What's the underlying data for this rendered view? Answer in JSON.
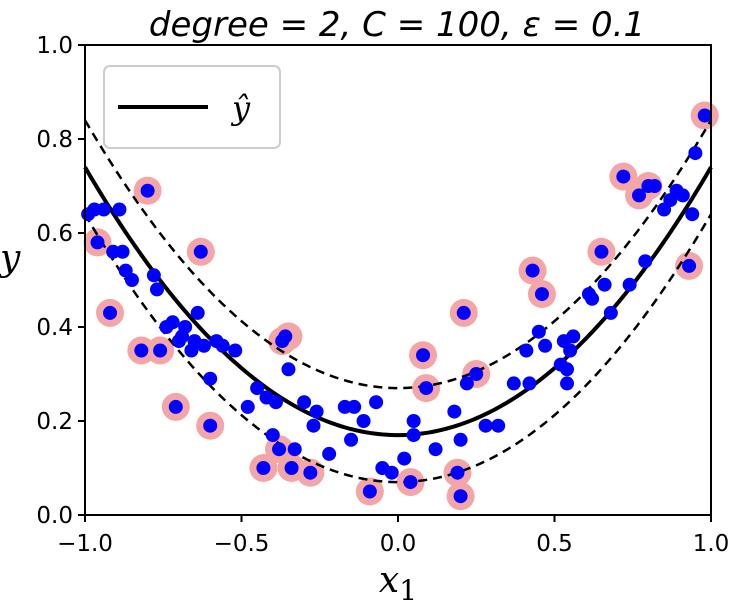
{
  "chart_data": {
    "type": "scatter",
    "title": "degree = 2, C = 100, ε = 0.1",
    "xlabel": "x",
    "xlabel_subscript": "1",
    "ylabel": "y",
    "xlim": [
      -1.0,
      1.0
    ],
    "ylim": [
      0.0,
      1.0
    ],
    "xticks": [
      -1.0,
      -0.5,
      0.0,
      0.5,
      1.0
    ],
    "xtick_labels": [
      "−1.0",
      "−0.5",
      "0.0",
      "0.5",
      "1.0"
    ],
    "yticks": [
      0.0,
      0.2,
      0.4,
      0.6,
      0.8,
      1.0
    ],
    "ytick_labels": [
      "0.0",
      "0.2",
      "0.4",
      "0.6",
      "0.8",
      "1.0"
    ],
    "grid": false,
    "legend": {
      "position": "top-left",
      "entries": [
        {
          "label": "ŷ",
          "style": "solid-black-line"
        }
      ]
    },
    "model": {
      "intercept": 0.17,
      "quadratic_coef": 0.57,
      "epsilon": 0.1
    },
    "colors": {
      "points": "#0000ff",
      "support_vectors": "#f4a6a6",
      "line": "#000000"
    },
    "points": [
      [
        -0.99,
        0.64
      ],
      [
        -0.97,
        0.65
      ],
      [
        -0.96,
        0.58
      ],
      [
        -0.94,
        0.65
      ],
      [
        -0.92,
        0.43
      ],
      [
        -0.91,
        0.56
      ],
      [
        -0.89,
        0.65
      ],
      [
        -0.88,
        0.56
      ],
      [
        -0.87,
        0.52
      ],
      [
        -0.85,
        0.5
      ],
      [
        -0.82,
        0.35
      ],
      [
        -0.8,
        0.69
      ],
      [
        -0.78,
        0.51
      ],
      [
        -0.77,
        0.48
      ],
      [
        -0.76,
        0.35
      ],
      [
        -0.74,
        0.4
      ],
      [
        -0.72,
        0.41
      ],
      [
        -0.71,
        0.23
      ],
      [
        -0.7,
        0.37
      ],
      [
        -0.69,
        0.38
      ],
      [
        -0.68,
        0.4
      ],
      [
        -0.66,
        0.35
      ],
      [
        -0.65,
        0.37
      ],
      [
        -0.64,
        0.43
      ],
      [
        -0.63,
        0.56
      ],
      [
        -0.62,
        0.36
      ],
      [
        -0.6,
        0.29
      ],
      [
        -0.6,
        0.19
      ],
      [
        -0.58,
        0.37
      ],
      [
        -0.56,
        0.36
      ],
      [
        -0.52,
        0.35
      ],
      [
        -0.48,
        0.23
      ],
      [
        -0.45,
        0.27
      ],
      [
        -0.43,
        0.1
      ],
      [
        -0.42,
        0.25
      ],
      [
        -0.4,
        0.17
      ],
      [
        -0.39,
        0.24
      ],
      [
        -0.38,
        0.14
      ],
      [
        -0.37,
        0.37
      ],
      [
        -0.36,
        0.38
      ],
      [
        -0.35,
        0.31
      ],
      [
        -0.34,
        0.1
      ],
      [
        -0.33,
        0.14
      ],
      [
        -0.3,
        0.24
      ],
      [
        -0.28,
        0.09
      ],
      [
        -0.27,
        0.19
      ],
      [
        -0.26,
        0.22
      ],
      [
        -0.22,
        0.13
      ],
      [
        -0.17,
        0.23
      ],
      [
        -0.15,
        0.16
      ],
      [
        -0.14,
        0.23
      ],
      [
        -0.11,
        0.2
      ],
      [
        -0.09,
        0.05
      ],
      [
        -0.07,
        0.24
      ],
      [
        -0.05,
        0.1
      ],
      [
        -0.02,
        0.09
      ],
      [
        0.02,
        0.12
      ],
      [
        0.04,
        0.07
      ],
      [
        0.05,
        0.2
      ],
      [
        0.05,
        0.17
      ],
      [
        0.08,
        0.34
      ],
      [
        0.09,
        0.27
      ],
      [
        0.12,
        0.14
      ],
      [
        0.18,
        0.22
      ],
      [
        0.19,
        0.09
      ],
      [
        0.2,
        0.04
      ],
      [
        0.2,
        0.16
      ],
      [
        0.21,
        0.43
      ],
      [
        0.22,
        0.28
      ],
      [
        0.25,
        0.3
      ],
      [
        0.28,
        0.19
      ],
      [
        0.32,
        0.19
      ],
      [
        0.37,
        0.28
      ],
      [
        0.41,
        0.35
      ],
      [
        0.42,
        0.28
      ],
      [
        0.43,
        0.52
      ],
      [
        0.45,
        0.39
      ],
      [
        0.46,
        0.47
      ],
      [
        0.47,
        0.36
      ],
      [
        0.52,
        0.32
      ],
      [
        0.53,
        0.37
      ],
      [
        0.54,
        0.31
      ],
      [
        0.54,
        0.28
      ],
      [
        0.55,
        0.35
      ],
      [
        0.56,
        0.38
      ],
      [
        0.61,
        0.47
      ],
      [
        0.62,
        0.46
      ],
      [
        0.65,
        0.56
      ],
      [
        0.66,
        0.49
      ],
      [
        0.68,
        0.43
      ],
      [
        0.72,
        0.72
      ],
      [
        0.74,
        0.49
      ],
      [
        0.77,
        0.68
      ],
      [
        0.79,
        0.54
      ],
      [
        0.8,
        0.7
      ],
      [
        0.82,
        0.7
      ],
      [
        0.85,
        0.65
      ],
      [
        0.87,
        0.67
      ],
      [
        0.89,
        0.69
      ],
      [
        0.91,
        0.68
      ],
      [
        0.93,
        0.53
      ],
      [
        0.94,
        0.64
      ],
      [
        0.95,
        0.77
      ],
      [
        0.98,
        0.85
      ]
    ],
    "support_vectors": [
      [
        -0.96,
        0.58
      ],
      [
        -0.92,
        0.43
      ],
      [
        -0.82,
        0.35
      ],
      [
        -0.8,
        0.69
      ],
      [
        -0.76,
        0.35
      ],
      [
        -0.71,
        0.23
      ],
      [
        -0.63,
        0.56
      ],
      [
        -0.6,
        0.19
      ],
      [
        -0.43,
        0.1
      ],
      [
        -0.38,
        0.14
      ],
      [
        -0.37,
        0.37
      ],
      [
        -0.35,
        0.38
      ],
      [
        -0.34,
        0.1
      ],
      [
        -0.28,
        0.09
      ],
      [
        -0.09,
        0.05
      ],
      [
        0.04,
        0.07
      ],
      [
        0.08,
        0.34
      ],
      [
        0.09,
        0.27
      ],
      [
        0.19,
        0.09
      ],
      [
        0.2,
        0.04
      ],
      [
        0.21,
        0.43
      ],
      [
        0.25,
        0.3
      ],
      [
        0.43,
        0.52
      ],
      [
        0.46,
        0.47
      ],
      [
        0.65,
        0.56
      ],
      [
        0.72,
        0.72
      ],
      [
        0.77,
        0.68
      ],
      [
        0.8,
        0.7
      ],
      [
        0.93,
        0.53
      ],
      [
        0.98,
        0.85
      ]
    ]
  }
}
